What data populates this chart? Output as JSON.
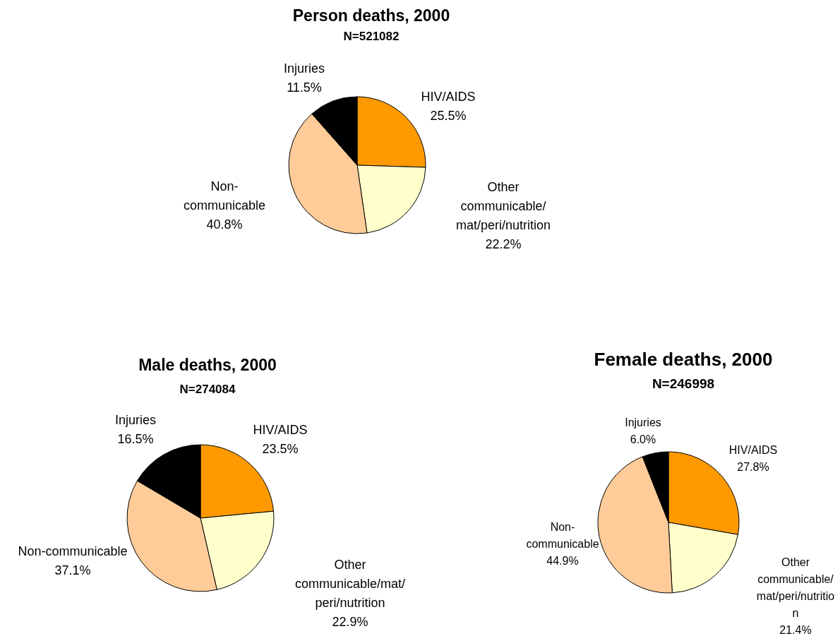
{
  "chart_data": [
    {
      "type": "pie",
      "title": "Person deaths, 2000",
      "subtitle": "N=521082",
      "categories": [
        "HIV/AIDS",
        "Other communicable/mat/peri/nutrition",
        "Non-communicable",
        "Injuries"
      ],
      "values": [
        25.5,
        22.2,
        40.8,
        11.5
      ],
      "value_labels": [
        "25.5%",
        "22.2%",
        "40.8%",
        "11.5%"
      ],
      "colors": [
        "#ff9900",
        "#ffffcc",
        "#ffcc99",
        "#000000"
      ]
    },
    {
      "type": "pie",
      "title": "Male deaths, 2000",
      "subtitle": "N=274084",
      "categories": [
        "HIV/AIDS",
        "Other communicable/mat/peri/nutrition",
        "Non-communicable",
        "Injuries"
      ],
      "values": [
        23.5,
        22.9,
        37.1,
        16.5
      ],
      "value_labels": [
        "23.5%",
        "22.9%",
        "37.1%",
        "16.5%"
      ],
      "colors": [
        "#ff9900",
        "#ffffcc",
        "#ffcc99",
        "#000000"
      ]
    },
    {
      "type": "pie",
      "title": "Female deaths, 2000",
      "subtitle": "N=246998",
      "categories": [
        "HIV/AIDS",
        "Other communicable/mat/peri/nutrition",
        "Non-communicable",
        "Injuries"
      ],
      "values": [
        27.8,
        21.4,
        44.9,
        6.0
      ],
      "value_labels": [
        "27.8%",
        "21.4%",
        "44.9%",
        "6.0%"
      ],
      "colors": [
        "#ff9900",
        "#ffffcc",
        "#ffcc99",
        "#000000"
      ]
    }
  ]
}
